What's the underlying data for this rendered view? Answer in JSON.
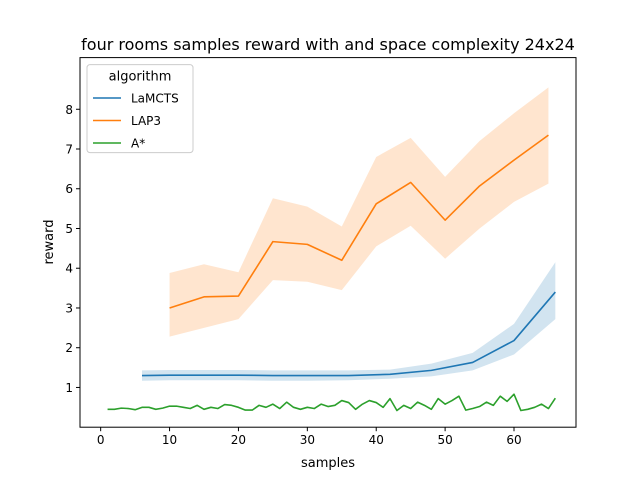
{
  "chart_data": {
    "type": "line",
    "title": "four rooms samples reward with and space complexity 24x24",
    "xlabel": "samples",
    "ylabel": "reward",
    "xlim": [
      -3,
      69
    ],
    "ylim": [
      0,
      9.3
    ],
    "xticks": [
      0,
      10,
      20,
      30,
      40,
      50,
      60
    ],
    "yticks": [
      1,
      2,
      3,
      4,
      5,
      6,
      7,
      8
    ],
    "grid": false,
    "legend": {
      "title": "algorithm",
      "position": "top-left"
    },
    "series": [
      {
        "name": "LaMCTS",
        "color": "#1f77b4",
        "x": [
          6,
          10,
          15,
          20,
          25,
          30,
          36,
          42,
          48,
          54,
          60,
          66
        ],
        "y": [
          1.3,
          1.31,
          1.31,
          1.31,
          1.3,
          1.3,
          1.3,
          1.33,
          1.43,
          1.63,
          2.18,
          3.4
        ],
        "lower": [
          1.17,
          1.18,
          1.18,
          1.18,
          1.17,
          1.17,
          1.18,
          1.22,
          1.28,
          1.43,
          1.83,
          2.72
        ],
        "upper": [
          1.43,
          1.44,
          1.44,
          1.44,
          1.43,
          1.43,
          1.43,
          1.45,
          1.6,
          1.87,
          2.6,
          4.15
        ]
      },
      {
        "name": "LAP3",
        "color": "#ff7f0e",
        "x": [
          10,
          15,
          20,
          25,
          30,
          35,
          40,
          45,
          50,
          55,
          60,
          65
        ],
        "y": [
          3.0,
          3.28,
          3.3,
          4.67,
          4.6,
          4.2,
          5.62,
          6.16,
          5.21,
          6.07,
          6.72,
          7.35
        ],
        "lower": [
          2.28,
          2.5,
          2.72,
          3.7,
          3.66,
          3.45,
          4.55,
          5.07,
          4.24,
          5.0,
          5.67,
          6.13
        ],
        "upper": [
          3.88,
          4.1,
          3.9,
          5.76,
          5.55,
          5.05,
          6.8,
          7.28,
          6.3,
          7.2,
          7.9,
          8.55
        ]
      },
      {
        "name": "A*",
        "color": "#2ca02c",
        "x": [
          1,
          2,
          3,
          4,
          5,
          6,
          7,
          8,
          9,
          10,
          11,
          12,
          13,
          14,
          15,
          16,
          17,
          18,
          19,
          20,
          21,
          22,
          23,
          24,
          25,
          26,
          27,
          28,
          29,
          30,
          31,
          32,
          33,
          34,
          35,
          36,
          37,
          38,
          39,
          40,
          41,
          42,
          43,
          44,
          45,
          46,
          47,
          48,
          49,
          50,
          51,
          52,
          53,
          54,
          55,
          56,
          57,
          58,
          59,
          60,
          61,
          62,
          63,
          64,
          65,
          66
        ],
        "y": [
          0.45,
          0.45,
          0.48,
          0.47,
          0.44,
          0.5,
          0.5,
          0.45,
          0.48,
          0.53,
          0.53,
          0.5,
          0.47,
          0.55,
          0.45,
          0.5,
          0.47,
          0.57,
          0.55,
          0.5,
          0.43,
          0.43,
          0.55,
          0.5,
          0.58,
          0.47,
          0.63,
          0.5,
          0.45,
          0.5,
          0.47,
          0.58,
          0.52,
          0.55,
          0.67,
          0.62,
          0.45,
          0.58,
          0.67,
          0.62,
          0.5,
          0.72,
          0.42,
          0.55,
          0.47,
          0.63,
          0.55,
          0.45,
          0.72,
          0.58,
          0.67,
          0.78,
          0.43,
          0.47,
          0.52,
          0.63,
          0.55,
          0.78,
          0.65,
          0.83,
          0.42,
          0.45,
          0.5,
          0.58,
          0.47,
          0.73
        ]
      }
    ]
  }
}
